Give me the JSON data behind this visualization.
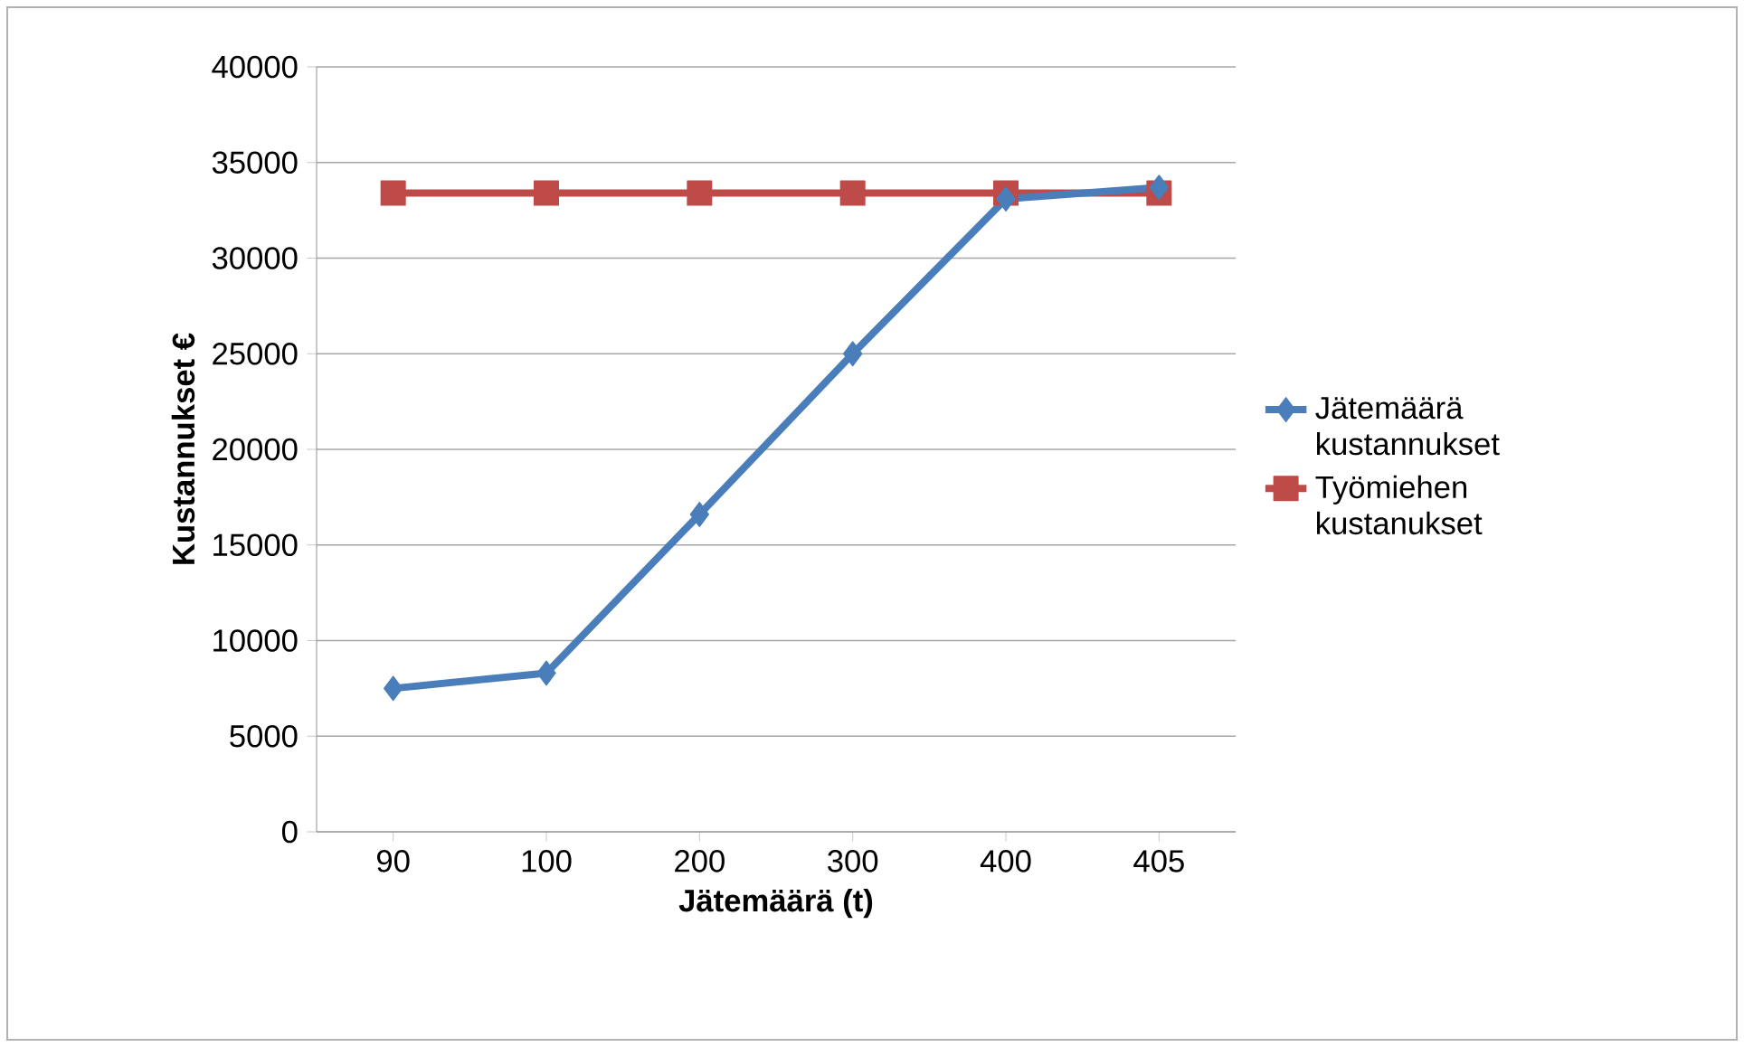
{
  "chart_data": {
    "type": "line",
    "xlabel": "Jätemäärä (t)",
    "ylabel": "Kustannukset €",
    "categories": [
      "90",
      "100",
      "200",
      "300",
      "400",
      "405"
    ],
    "series": [
      {
        "name": "Jätemäärä kustannukset",
        "color": "#4a7ebb",
        "marker": "diamond",
        "values": [
          7500,
          8300,
          16600,
          25000,
          33100,
          33700
        ]
      },
      {
        "name": "Työmiehen kustanukset",
        "color": "#be4b48",
        "marker": "square",
        "values": [
          33400,
          33400,
          33400,
          33400,
          33400,
          33400
        ]
      }
    ],
    "ylim": [
      0,
      40000
    ],
    "yticks": [
      0,
      5000,
      10000,
      15000,
      20000,
      25000,
      30000,
      35000,
      40000
    ],
    "grid": "y",
    "legend": "right"
  }
}
